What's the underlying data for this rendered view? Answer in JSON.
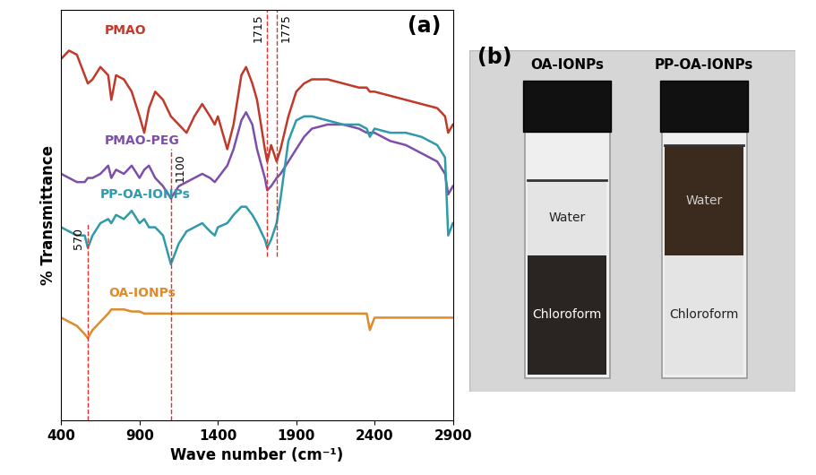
{
  "chart_data": {
    "type": "line",
    "panel_label": "(a)",
    "x_label": "Wave number (cm⁻¹)",
    "y_label": "% Transmittance",
    "x": [
      400,
      450,
      500,
      550,
      570,
      600,
      650,
      700,
      720,
      750,
      800,
      850,
      900,
      930,
      960,
      1000,
      1050,
      1100,
      1150,
      1200,
      1250,
      1300,
      1350,
      1380,
      1400,
      1460,
      1500,
      1550,
      1580,
      1620,
      1650,
      1700,
      1715,
      1740,
      1775,
      1800,
      1850,
      1900,
      1950,
      2000,
      2100,
      2200,
      2300,
      2350,
      2370,
      2400,
      2500,
      2600,
      2700,
      2800,
      2850,
      2870,
      2900
    ],
    "series": [
      {
        "name": "PMAO",
        "color": "#c0392b",
        "values": [
          88,
          90,
          89,
          84,
          82,
          83,
          86,
          84,
          78,
          84,
          83,
          80,
          74,
          70,
          76,
          80,
          78,
          74,
          72,
          70,
          74,
          77,
          74,
          72,
          74,
          66,
          72,
          84,
          86,
          82,
          78,
          66,
          63,
          67,
          63,
          66,
          74,
          80,
          82,
          83,
          83,
          82,
          81,
          81,
          80,
          80,
          79,
          78,
          77,
          76,
          74,
          70,
          72
        ]
      },
      {
        "name": "PMAO-PEG",
        "color": "#7d4fa8",
        "values": [
          60,
          59,
          58,
          58,
          59,
          59,
          60,
          62,
          59,
          61,
          60,
          62,
          59,
          61,
          62,
          59,
          57,
          54,
          57,
          58,
          59,
          60,
          59,
          58,
          59,
          62,
          66,
          73,
          75,
          72,
          66,
          59,
          56,
          57,
          59,
          60,
          63,
          66,
          69,
          71,
          72,
          72,
          71,
          70,
          70,
          70,
          68,
          67,
          65,
          63,
          60,
          55,
          57
        ]
      },
      {
        "name": "PP-OA-IONPs",
        "color": "#2e9aab",
        "values": [
          47,
          46,
          45,
          45,
          42,
          45,
          48,
          49,
          48,
          50,
          49,
          51,
          48,
          49,
          47,
          47,
          45,
          38,
          43,
          46,
          47,
          48,
          46,
          45,
          47,
          48,
          50,
          52,
          52,
          50,
          48,
          44,
          42,
          44,
          48,
          54,
          68,
          73,
          74,
          74,
          73,
          72,
          72,
          71,
          69,
          71,
          70,
          70,
          69,
          67,
          64,
          45,
          48
        ]
      },
      {
        "name": "OA-IONPs",
        "color": "#e08a2c",
        "values": [
          25,
          24,
          23,
          21,
          20,
          22,
          24,
          26,
          27,
          27,
          27,
          26.5,
          26.5,
          26,
          26,
          26,
          26,
          26,
          26,
          26,
          26,
          26,
          26,
          26,
          26,
          26,
          26,
          26,
          26,
          26,
          26,
          26,
          26,
          26,
          26,
          26,
          26,
          26,
          26,
          26,
          26,
          26,
          26,
          26,
          22,
          25,
          25,
          25,
          25,
          25,
          25,
          25,
          25
        ]
      }
    ],
    "annotations": [
      {
        "x": 570,
        "label": "570",
        "ymin": 0,
        "ymax": 48,
        "color": "#e03030"
      },
      {
        "x": 1100,
        "label": "1100",
        "ymin": 0,
        "ymax": 66,
        "color": "#e03030"
      },
      {
        "x": 1715,
        "label": "1715",
        "ymin": 40,
        "ymax": 100,
        "color": "#e03030"
      },
      {
        "x": 1775,
        "label": "1775",
        "ymin": 40,
        "ymax": 100,
        "color": "#e03030"
      }
    ],
    "xlim": [
      400,
      2900
    ],
    "xticks": [
      400,
      900,
      1400,
      1900,
      2400,
      2900
    ],
    "ylim": [
      0,
      100
    ],
    "tick_labels": "x",
    "grid": false
  },
  "photo": {
    "panel_label": "(b)",
    "vials": [
      {
        "title": "OA-IONPs",
        "phases": [
          {
            "name": "Water",
            "color": "#e4e4e4"
          },
          {
            "name": "Chloroform",
            "color": "#2a2522"
          }
        ]
      },
      {
        "title": "PP-OA-IONPs",
        "phases": [
          {
            "name": "Water",
            "color": "#3b2a1e"
          },
          {
            "name": "Chloroform",
            "color": "#e4e4e4"
          }
        ]
      }
    ]
  }
}
